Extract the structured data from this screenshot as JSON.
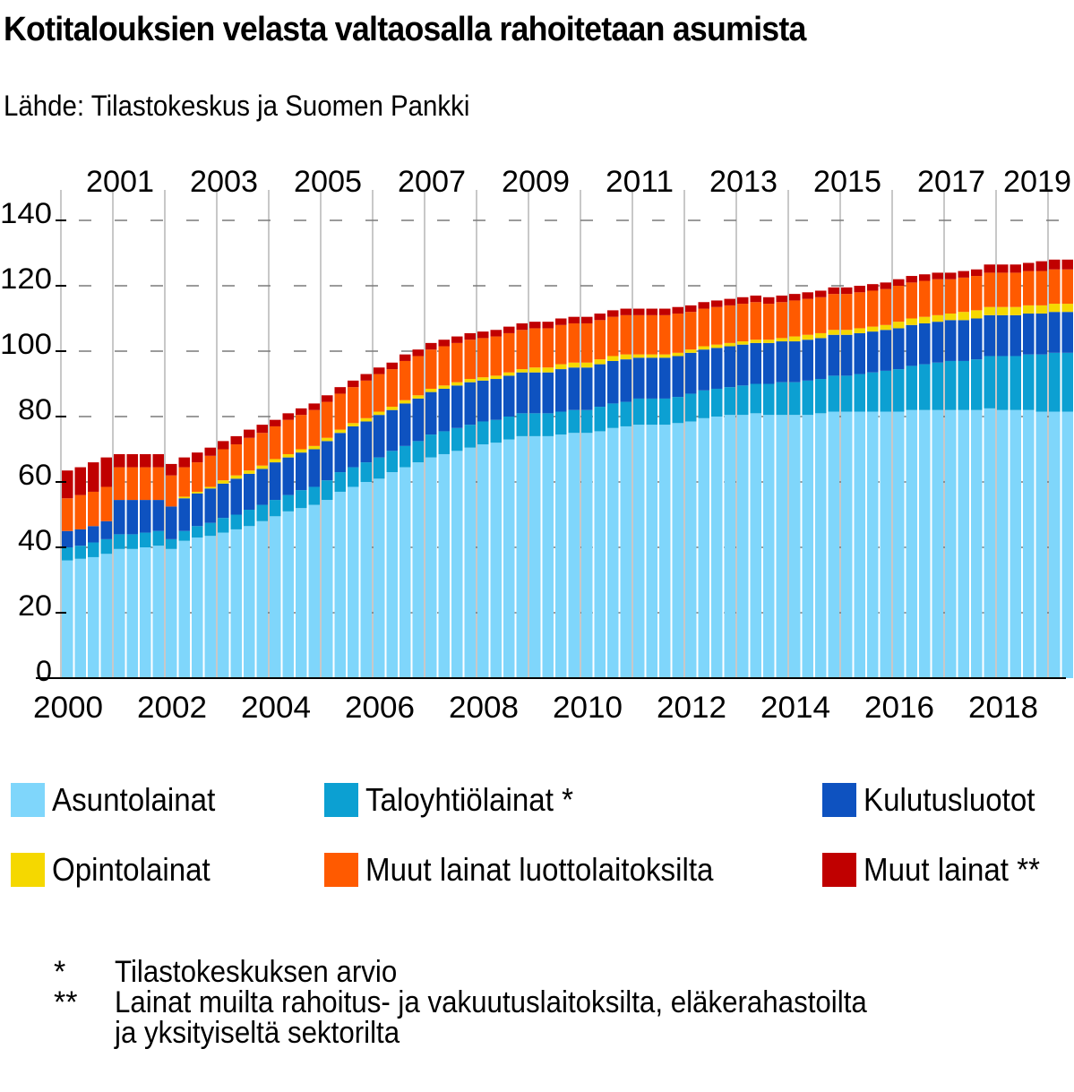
{
  "title": "Kotitalouksien velasta valtaosalla rahoitetaan asumista",
  "source": "Lähde: Tilastokeskus ja Suomen Pankki",
  "chart_data": {
    "type": "bar",
    "stacked": true,
    "title": "Kotitalouksien velasta valtaosalla rahoitetaan asumista",
    "ylim": [
      0,
      140
    ],
    "yticks": [
      0,
      20,
      40,
      60,
      80,
      100,
      120,
      140
    ],
    "x_bottom_labels": [
      "2000",
      "2002",
      "2004",
      "2006",
      "2008",
      "2010",
      "2012",
      "2014",
      "2016",
      "2018"
    ],
    "x_top_labels": [
      "2001",
      "2003",
      "2005",
      "2007",
      "2009",
      "2011",
      "2013",
      "2015",
      "2017",
      "2019"
    ],
    "periods": "quarterly, 2000 Q1 – 2019 Q2",
    "series": [
      {
        "name": "Asuntolainat",
        "color": "#7fd6fb",
        "values": [
          36,
          36.5,
          37,
          38,
          39.5,
          39.5,
          40,
          40.5,
          39.5,
          42,
          43,
          43.5,
          44.5,
          45.5,
          46.5,
          48,
          49.5,
          51,
          52,
          53,
          54.5,
          57,
          58.5,
          60,
          61,
          63,
          64.5,
          66,
          67.5,
          68.5,
          69.5,
          70.5,
          71.5,
          72,
          73,
          74,
          74,
          74,
          74.5,
          75,
          75,
          75.5,
          76.5,
          77,
          77.5,
          77.5,
          77.5,
          78,
          78.5,
          79.5,
          80,
          80.5,
          80.5,
          81,
          80.5,
          80.5,
          80.5,
          80.5,
          81,
          81.5,
          81.5,
          81.5,
          81.5,
          81.5,
          81.5,
          82,
          82,
          82,
          82,
          82,
          82,
          82.5,
          82,
          82,
          82,
          81.5,
          81.5,
          81.5
        ]
      },
      {
        "name": "Taloyhtiölainat *",
        "color": "#0ca0d2",
        "values": [
          4,
          4,
          4.5,
          4.5,
          4.5,
          4.5,
          4.5,
          4.5,
          3,
          3,
          3.5,
          4,
          4.5,
          4.5,
          5,
          5,
          5,
          5,
          5.5,
          5.5,
          6,
          6,
          6,
          6,
          6.5,
          6.5,
          6.5,
          6.5,
          7,
          7,
          7,
          7,
          7,
          7,
          7,
          7,
          7,
          7,
          7,
          7,
          7,
          7.5,
          7.5,
          7.5,
          8,
          8,
          8,
          8,
          8.5,
          8.5,
          8.5,
          8.5,
          9,
          9,
          9.5,
          10,
          10,
          10.5,
          10.5,
          11,
          11,
          11.5,
          12,
          12.5,
          13,
          13.5,
          14,
          14.5,
          15,
          15,
          15.5,
          16,
          16.5,
          16.5,
          17,
          17.5,
          18,
          18
        ]
      },
      {
        "name": "Kulutusluotot",
        "color": "#0e52c0",
        "values": [
          5,
          5,
          5,
          5.5,
          10.5,
          10.5,
          10,
          9.5,
          10,
          10,
          10,
          10.5,
          10.5,
          11,
          11,
          11,
          11.5,
          11.5,
          11.5,
          11.5,
          12,
          12,
          12.5,
          12.5,
          13,
          12.5,
          13,
          13,
          13,
          13,
          13,
          13,
          12.5,
          12.5,
          12.5,
          12.5,
          12.5,
          12.5,
          13,
          13,
          13,
          13,
          13,
          13,
          12.5,
          12.5,
          12.5,
          12.5,
          12.5,
          12.5,
          12.5,
          12.5,
          12.5,
          12.5,
          12.5,
          12.5,
          12.5,
          12.5,
          12.5,
          12.5,
          12.5,
          12.5,
          12.5,
          12.5,
          12.5,
          12.5,
          12.5,
          12.5,
          12.5,
          12.5,
          12.5,
          12.5,
          12.5,
          12.5,
          12.5,
          12.5,
          12.5,
          12.5
        ]
      },
      {
        "name": "Opintolainat",
        "color": "#f5d800",
        "values": [
          0,
          0,
          0,
          0,
          0,
          0,
          0,
          0,
          0,
          0.5,
          0.5,
          0.5,
          1,
          1,
          1,
          1,
          1,
          1,
          1,
          1,
          1,
          1,
          1,
          1,
          1,
          1,
          1,
          1,
          1,
          1,
          1,
          1,
          1,
          1,
          1,
          1,
          1.5,
          1.5,
          1.5,
          1.5,
          1.5,
          1.5,
          1.5,
          1.5,
          1,
          1,
          1,
          1,
          1,
          1,
          1,
          1,
          1,
          1,
          1,
          1,
          1.5,
          1.5,
          1.5,
          1.5,
          1.5,
          1.5,
          1.5,
          1.5,
          2,
          2,
          2,
          2,
          2,
          2.5,
          2.5,
          2.5,
          2.5,
          2.5,
          2.5,
          2.5,
          2.5,
          2.5
        ]
      },
      {
        "name": "Muut lainat luottolaitoksilta",
        "color": "#ff5a00",
        "values": [
          10,
          10.5,
          10.5,
          10.5,
          10,
          10,
          10,
          10,
          9.5,
          9,
          9,
          9.5,
          9.5,
          9.5,
          10,
          10,
          10,
          10.5,
          10.5,
          11,
          11,
          11,
          11,
          11.5,
          11.5,
          11.5,
          12,
          12,
          12,
          12,
          12,
          12,
          12,
          12,
          12,
          12,
          12,
          12,
          12,
          12,
          12,
          12,
          12,
          12,
          12,
          12,
          12,
          12,
          11.5,
          11.5,
          11.5,
          11.5,
          11.5,
          11.5,
          11,
          11,
          11,
          11,
          11,
          11,
          11,
          11,
          11,
          11,
          11,
          11,
          11,
          11,
          10.5,
          10.5,
          10.5,
          10.5,
          10.5,
          10.5,
          10.5,
          10.5,
          10.5,
          10.5
        ]
      },
      {
        "name": "Muut lainat **",
        "color": "#c00000",
        "values": [
          8.5,
          8.5,
          9,
          9,
          4,
          4,
          4,
          4,
          3.5,
          3,
          3,
          2.5,
          2.5,
          2.5,
          2.5,
          2.5,
          2,
          2,
          2,
          2,
          2,
          2,
          2,
          2,
          2,
          2,
          2,
          2,
          2,
          2,
          2,
          2,
          2,
          2,
          2,
          2,
          2,
          2,
          2,
          2,
          2,
          2,
          2,
          2,
          2,
          2,
          2,
          2,
          2,
          2,
          2,
          2,
          2,
          2,
          2,
          2,
          2,
          2,
          2,
          2,
          2,
          2,
          2,
          2,
          2,
          2,
          2,
          2,
          2,
          2,
          2,
          2.5,
          2.5,
          2.5,
          2.5,
          3,
          3,
          3
        ]
      }
    ]
  },
  "legend": [
    {
      "label": "Asuntolainat",
      "color": "#7fd6fb"
    },
    {
      "label": "Taloyhtiölainat *",
      "color": "#0ca0d2"
    },
    {
      "label": "Kulutusluotot",
      "color": "#0e52c0"
    },
    {
      "label": "Opintolainat",
      "color": "#f5d800"
    },
    {
      "label": "Muut lainat luottolaitoksilta",
      "color": "#ff5a00"
    },
    {
      "label": "Muut lainat **",
      "color": "#c00000"
    }
  ],
  "footnotes": [
    {
      "mark": "*",
      "text": "Tilastokeskuksen arvio"
    },
    {
      "mark": "**",
      "text": "Lainat muilta rahoitus- ja vakuutuslaitoksilta, eläkerahastoilta"
    },
    {
      "mark": "",
      "text": "ja yksityiseltä sektorilta"
    }
  ]
}
